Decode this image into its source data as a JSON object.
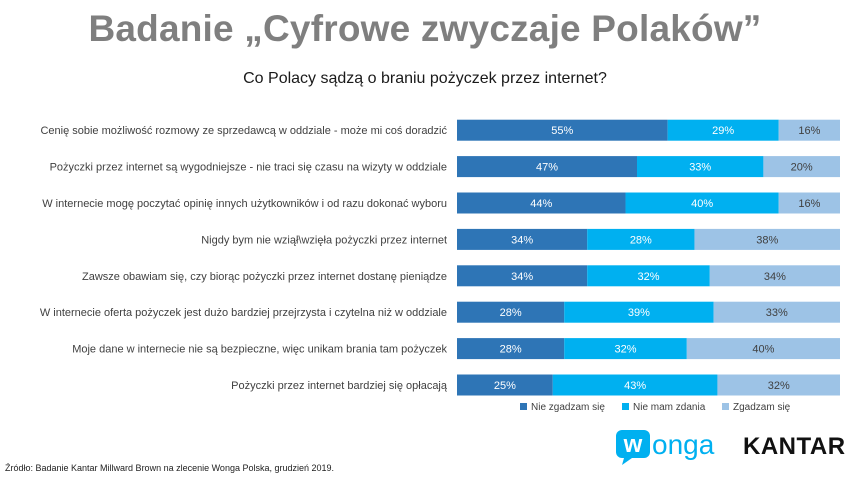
{
  "title": "Badanie „Cyfrowe zwyczaje Polaków”",
  "subtitle": "Co Polacy sądzą o braniu pożyczek przez internet?",
  "source": "Źródło: Badanie Kantar Millward Brown na zlecenie Wonga Polska, grudzień 2019.",
  "logos": {
    "wonga": "wonga",
    "kantar": "KANTAR"
  },
  "chart_data": {
    "type": "bar",
    "orientation": "horizontal",
    "stacked": true,
    "title": "Co Polacy sądzą o braniu pożyczek przez internet?",
    "categories": [
      "Cenię sobie możliwość rozmowy ze sprzedawcą w oddziale - może mi coś doradzić",
      "Pożyczki przez internet są wygodniejsze - nie traci się czasu na wizyty w oddziale",
      "W internecie mogę poczytać opinię innych użytkowników i od razu dokonać wyboru",
      "Nigdy bym nie wziął\\wzięła pożyczki przez internet",
      "Zawsze obawiam się, czy biorąc pożyczki przez internet dostanę pieniądze",
      "W internecie oferta pożyczek jest dużo bardziej przejrzysta i czytelna niż w oddziale",
      "Moje dane w internecie nie są bezpieczne, więc unikam brania tam pożyczek",
      "Pożyczki przez internet bardziej się opłacają"
    ],
    "series": [
      {
        "name": "Nie zgadzam się",
        "color": "#2e75b6",
        "values": [
          55,
          47,
          44,
          34,
          34,
          28,
          28,
          25
        ]
      },
      {
        "name": "Nie mam zdania",
        "color": "#00b0f0",
        "values": [
          29,
          33,
          40,
          28,
          32,
          39,
          32,
          43
        ]
      },
      {
        "name": "Zgadzam się",
        "color": "#9dc3e6",
        "values": [
          16,
          20,
          16,
          38,
          34,
          33,
          40,
          32
        ]
      }
    ],
    "xlim": [
      0,
      100
    ],
    "value_suffix": "%",
    "legend": "bottom-right"
  }
}
